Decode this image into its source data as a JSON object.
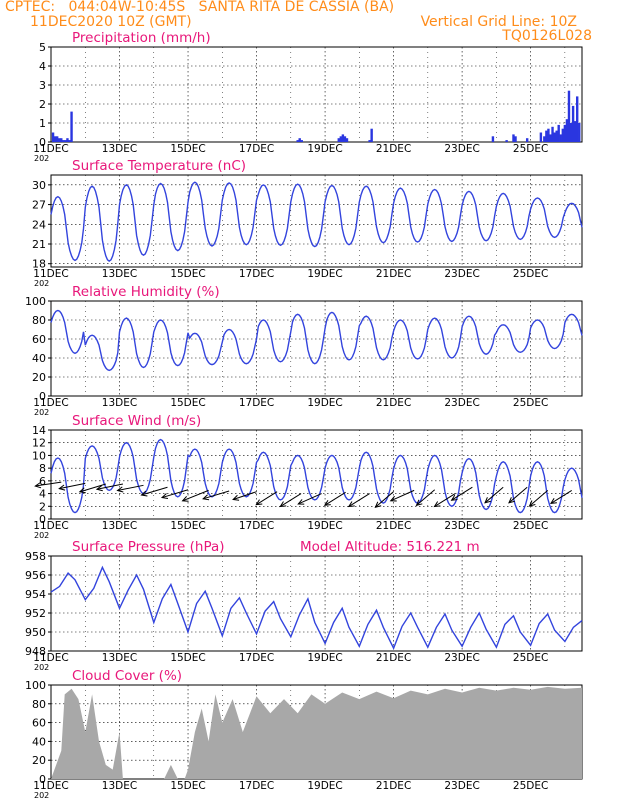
{
  "header": {
    "line1": "CPTEC:   044:04W-10:45S   SANTA RITA DE CASSIA (BA)",
    "line2": "11DEC2020 10Z (GMT)",
    "grid_note": "Vertical Grid Line: 10Z",
    "code": "TQ0126L028"
  },
  "colors": {
    "header": "#ff8c1a",
    "panel_title": "#e8177a",
    "line": "#3344dd",
    "bar": "#2a36e0",
    "cloud": "#a8a8a8",
    "axes": "#000000"
  },
  "x_axis": {
    "tick_labels": [
      "11DEC",
      "13DEC",
      "15DEC",
      "17DEC",
      "19DEC",
      "21DEC",
      "23DEC",
      "25DEC"
    ],
    "year_fragment": "202"
  },
  "chart_data": [
    {
      "id": "precip",
      "type": "bar",
      "title": "Precipitation (mm/h)",
      "ylim": [
        0,
        5
      ],
      "yticks": [
        0,
        1,
        2,
        3,
        4,
        5
      ],
      "grid": "dashed",
      "x_units": "days since 11DEC2020 10Z",
      "x": [
        0.06,
        0.12,
        0.18,
        0.24,
        0.3,
        0.36,
        0.42,
        0.48,
        0.54,
        0.6,
        7.2,
        7.26,
        7.32,
        8.4,
        8.46,
        8.52,
        8.58,
        8.64,
        9.3,
        9.36,
        12.9,
        13.3,
        13.5,
        13.56,
        13.9,
        14.3,
        14.4,
        14.46,
        14.52,
        14.58,
        14.64,
        14.7,
        14.76,
        14.82,
        14.88,
        14.94,
        15.0,
        15.06,
        15.12,
        15.18,
        15.24,
        15.3,
        15.36,
        15.42
      ],
      "values": [
        0.5,
        0.3,
        0.3,
        0.2,
        0.2,
        0.1,
        0.1,
        0.2,
        0.1,
        1.6,
        0.1,
        0.2,
        0.1,
        0.2,
        0.3,
        0.4,
        0.3,
        0.2,
        0.1,
        0.7,
        0.3,
        0.1,
        0.4,
        0.3,
        0.2,
        0.5,
        0.3,
        0.6,
        0.7,
        0.4,
        0.8,
        0.5,
        0.6,
        0.9,
        0.4,
        0.7,
        0.9,
        1.2,
        2.7,
        1.0,
        1.9,
        1.1,
        2.4,
        1.0
      ]
    },
    {
      "id": "temp",
      "type": "line",
      "title": "Surface Temperature (nC)",
      "ylim": [
        17.5,
        31.5
      ],
      "yticks": [
        18,
        21,
        24,
        27,
        30
      ],
      "grid": "dashed",
      "diurnal": {
        "days": 15.5,
        "max": [
          28.2,
          29.8,
          30.0,
          30.2,
          30.4,
          30.3,
          30.0,
          30.1,
          29.9,
          29.8,
          29.5,
          29.3,
          29.0,
          28.7,
          28.0,
          27.2
        ],
        "min": [
          18.5,
          18.4,
          19.3,
          20.0,
          20.7,
          20.9,
          20.8,
          20.6,
          20.9,
          21.2,
          21.3,
          21.4,
          21.5,
          21.7,
          22.0,
          22.1
        ]
      }
    },
    {
      "id": "rh",
      "type": "line",
      "title": "Relative Humidity (%)",
      "ylim": [
        0,
        100
      ],
      "yticks": [
        0,
        20,
        40,
        60,
        80,
        100
      ],
      "grid": "dashed",
      "diurnal": {
        "days": 15.5,
        "max": [
          90,
          64,
          82,
          80,
          66,
          70,
          80,
          86,
          88,
          84,
          80,
          82,
          84,
          75,
          80,
          86
        ],
        "min": [
          45,
          27,
          30,
          32,
          33,
          34,
          36,
          34,
          38,
          38,
          39,
          40,
          44,
          46,
          50,
          55
        ]
      }
    },
    {
      "id": "wind",
      "type": "line",
      "title": "Surface Wind (m/s)",
      "ylim": [
        0,
        14
      ],
      "yticks": [
        0,
        2,
        4,
        6,
        8,
        10,
        12,
        14
      ],
      "grid": "dashed",
      "diurnal": {
        "days": 15.5,
        "max": [
          9.6,
          11.5,
          12.0,
          12.5,
          11.0,
          11.0,
          10.5,
          10.0,
          10.0,
          10.5,
          10.0,
          10.0,
          9.5,
          9.0,
          9.0,
          8.0
        ],
        "min": [
          1.0,
          4.5,
          4.0,
          3.5,
          3.5,
          3.5,
          3.0,
          3.0,
          3.0,
          2.5,
          2.5,
          2.0,
          1.5,
          1.0,
          1.0,
          1.5
        ]
      },
      "arrows": {
        "x": [
          0.3,
          1.0,
          1.6,
          2.1,
          2.7,
          3.4,
          4.0,
          4.6,
          5.2,
          6.0,
          6.6,
          7.3,
          7.9,
          8.6,
          9.3,
          10.0,
          10.6,
          11.2,
          11.8,
          12.3,
          13.2,
          13.9,
          14.5,
          15.2
        ],
        "y": [
          5.8,
          5.6,
          5.5,
          5.5,
          5.3,
          5.0,
          4.6,
          4.5,
          4.4,
          4.3,
          4.3,
          4.0,
          4.0,
          4.2,
          4.0,
          4.3,
          4.5,
          4.6,
          4.0,
          5.0,
          5.0,
          5.0,
          4.5,
          4.5
        ],
        "u": [
          1.0,
          1.0,
          1.0,
          1.0,
          1.0,
          1.0,
          1.0,
          1.0,
          1.0,
          0.9,
          0.8,
          0.8,
          0.9,
          0.8,
          0.8,
          0.7,
          0.9,
          0.7,
          0.8,
          0.8,
          0.7,
          0.7,
          0.7,
          0.8
        ],
        "v": [
          0.15,
          0.2,
          0.3,
          0.2,
          0.2,
          0.3,
          0.3,
          0.4,
          0.3,
          0.3,
          0.5,
          0.5,
          0.4,
          0.5,
          0.5,
          0.6,
          0.4,
          0.6,
          0.5,
          0.5,
          0.6,
          0.6,
          0.6,
          0.5
        ]
      }
    },
    {
      "id": "press",
      "type": "line",
      "title": "Surface Pressure (hPa)",
      "subtitle": "Model Altitude: 516.221 m",
      "ylim": [
        948,
        958
      ],
      "yticks": [
        948,
        950,
        952,
        954,
        956,
        958
      ],
      "grid": "dashed",
      "x": [
        0,
        0.25,
        0.5,
        0.7,
        1.0,
        1.25,
        1.5,
        1.7,
        2.0,
        2.25,
        2.5,
        2.7,
        3.0,
        3.25,
        3.5,
        3.7,
        4.0,
        4.25,
        4.5,
        4.7,
        5.0,
        5.25,
        5.5,
        5.7,
        6.0,
        6.25,
        6.5,
        6.7,
        7.0,
        7.25,
        7.5,
        7.7,
        8.0,
        8.25,
        8.5,
        8.7,
        9.0,
        9.25,
        9.5,
        9.7,
        10.0,
        10.25,
        10.5,
        10.7,
        11.0,
        11.25,
        11.5,
        11.7,
        12.0,
        12.25,
        12.5,
        12.7,
        13.0,
        13.25,
        13.5,
        13.7,
        14.0,
        14.25,
        14.5,
        14.7,
        15.0,
        15.25,
        15.5
      ],
      "values": [
        954.2,
        954.8,
        956.2,
        955.5,
        953.4,
        954.6,
        956.8,
        955.3,
        952.5,
        954.4,
        956.0,
        954.5,
        951.0,
        953.5,
        955.0,
        953.0,
        950.0,
        953.0,
        954.3,
        952.5,
        949.6,
        952.5,
        953.6,
        952.0,
        949.8,
        952.2,
        953.2,
        951.4,
        949.5,
        951.8,
        953.5,
        951.0,
        948.8,
        951.0,
        952.5,
        950.5,
        948.5,
        950.8,
        952.3,
        950.5,
        948.3,
        950.6,
        952.0,
        950.5,
        948.4,
        950.5,
        951.9,
        950.2,
        948.5,
        950.5,
        952.0,
        950.3,
        948.4,
        950.8,
        951.7,
        950.0,
        948.6,
        950.9,
        951.9,
        950.2,
        949.0,
        950.5,
        951.2
      ]
    },
    {
      "id": "cloud",
      "type": "area",
      "title": "Cloud Cover (%)",
      "ylim": [
        0,
        100
      ],
      "yticks": [
        0,
        20,
        40,
        60,
        80,
        100
      ],
      "grid": "dashed",
      "x": [
        0,
        0.3,
        0.4,
        0.6,
        0.8,
        1.0,
        1.2,
        1.4,
        1.6,
        1.8,
        2.0,
        2.1,
        2.3,
        2.6,
        2.9,
        3.0,
        3.3,
        3.5,
        3.7,
        3.9,
        4.0,
        4.2,
        4.4,
        4.6,
        4.8,
        5.0,
        5.3,
        5.6,
        6.0,
        6.4,
        6.8,
        7.2,
        7.6,
        8.0,
        8.5,
        9.0,
        9.5,
        10.0,
        10.5,
        11.0,
        11.5,
        12.0,
        12.5,
        13.0,
        13.5,
        14.0,
        14.5,
        15.0,
        15.5
      ],
      "values": [
        0,
        30,
        90,
        96,
        85,
        50,
        90,
        40,
        15,
        10,
        50,
        0,
        0,
        0,
        0,
        0,
        0,
        15,
        0,
        0,
        10,
        50,
        75,
        40,
        90,
        60,
        85,
        50,
        88,
        70,
        85,
        70,
        90,
        80,
        92,
        85,
        93,
        86,
        94,
        90,
        96,
        92,
        97,
        94,
        97,
        95,
        98,
        96,
        97
      ]
    }
  ]
}
